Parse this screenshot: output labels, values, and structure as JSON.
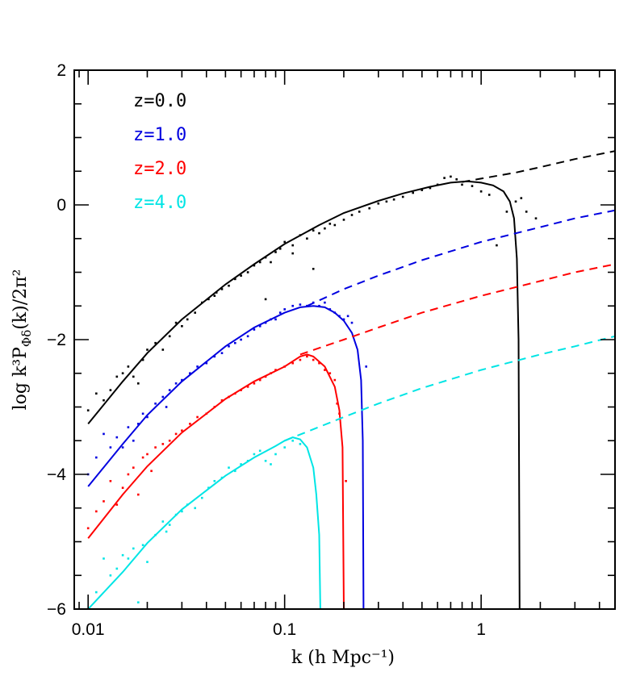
{
  "chart_data": {
    "type": "line",
    "xscale": "log",
    "xlabel": "k  (h  Mpc⁻¹)",
    "ylabel_main": "log  k³P",
    "ylabel_sub": "Φδ",
    "ylabel_rest": "(k)/2π²",
    "xlim": [
      0.0085,
      4.8
    ],
    "ylim": [
      -6,
      2
    ],
    "xticks": [
      {
        "value": 0.01,
        "label": "0.01"
      },
      {
        "value": 0.1,
        "label": "0.1"
      },
      {
        "value": 1,
        "label": "1"
      }
    ],
    "yticks": [
      {
        "value": 2,
        "label": "2"
      },
      {
        "value": 0,
        "label": "0"
      },
      {
        "value": -2,
        "label": "−2"
      },
      {
        "value": -4,
        "label": "−4"
      },
      {
        "value": -6,
        "label": "−6"
      }
    ],
    "legend_placement": "top-left",
    "series": [
      {
        "name": "z=0.0",
        "color": "#000000",
        "solid": [
          [
            0.01,
            -3.25
          ],
          [
            0.015,
            -2.62
          ],
          [
            0.02,
            -2.2
          ],
          [
            0.03,
            -1.7
          ],
          [
            0.05,
            -1.18
          ],
          [
            0.07,
            -0.88
          ],
          [
            0.1,
            -0.58
          ],
          [
            0.15,
            -0.3
          ],
          [
            0.2,
            -0.12
          ],
          [
            0.3,
            0.06
          ],
          [
            0.4,
            0.17
          ],
          [
            0.55,
            0.27
          ],
          [
            0.7,
            0.33
          ],
          [
            0.85,
            0.35
          ],
          [
            1.0,
            0.33
          ],
          [
            1.15,
            0.29
          ],
          [
            1.3,
            0.2
          ],
          [
            1.4,
            0.05
          ],
          [
            1.47,
            -0.2
          ],
          [
            1.52,
            -0.8
          ],
          [
            1.55,
            -2.0
          ],
          [
            1.57,
            -6.0
          ]
        ],
        "dashed": [
          [
            0.8,
            0.34
          ],
          [
            1.0,
            0.39
          ],
          [
            1.5,
            0.48
          ],
          [
            2.0,
            0.56
          ],
          [
            3.0,
            0.68
          ],
          [
            4.8,
            0.8
          ]
        ],
        "points": [
          [
            0.01,
            -3.05
          ],
          [
            0.011,
            -2.8
          ],
          [
            0.012,
            -2.9
          ],
          [
            0.013,
            -2.75
          ],
          [
            0.014,
            -2.55
          ],
          [
            0.015,
            -2.5
          ],
          [
            0.016,
            -2.4
          ],
          [
            0.017,
            -2.55
          ],
          [
            0.018,
            -2.65
          ],
          [
            0.019,
            -2.3
          ],
          [
            0.02,
            -2.15
          ],
          [
            0.022,
            -2.05
          ],
          [
            0.024,
            -2.15
          ],
          [
            0.026,
            -1.95
          ],
          [
            0.028,
            -1.75
          ],
          [
            0.03,
            -1.8
          ],
          [
            0.032,
            -1.7
          ],
          [
            0.035,
            -1.6
          ],
          [
            0.038,
            -1.45
          ],
          [
            0.041,
            -1.4
          ],
          [
            0.044,
            -1.35
          ],
          [
            0.048,
            -1.25
          ],
          [
            0.052,
            -1.2
          ],
          [
            0.056,
            -1.1
          ],
          [
            0.06,
            -1.05
          ],
          [
            0.065,
            -1.0
          ],
          [
            0.07,
            -0.9
          ],
          [
            0.075,
            -0.85
          ],
          [
            0.08,
            -0.78
          ],
          [
            0.085,
            -0.85
          ],
          [
            0.09,
            -0.7
          ],
          [
            0.095,
            -0.65
          ],
          [
            0.1,
            -0.55
          ],
          [
            0.11,
            -0.6
          ],
          [
            0.12,
            -0.45
          ],
          [
            0.13,
            -0.5
          ],
          [
            0.14,
            -0.38
          ],
          [
            0.15,
            -0.42
          ],
          [
            0.16,
            -0.35
          ],
          [
            0.17,
            -0.28
          ],
          [
            0.18,
            -0.3
          ],
          [
            0.2,
            -0.22
          ],
          [
            0.22,
            -0.15
          ],
          [
            0.24,
            -0.1
          ],
          [
            0.27,
            -0.05
          ],
          [
            0.3,
            0.02
          ],
          [
            0.33,
            0.05
          ],
          [
            0.36,
            0.08
          ],
          [
            0.4,
            0.12
          ],
          [
            0.45,
            0.18
          ],
          [
            0.5,
            0.22
          ],
          [
            0.55,
            0.25
          ],
          [
            0.6,
            0.3
          ],
          [
            0.65,
            0.4
          ],
          [
            0.7,
            0.42
          ],
          [
            0.75,
            0.38
          ],
          [
            0.8,
            0.3
          ],
          [
            0.9,
            0.28
          ],
          [
            1.0,
            0.2
          ],
          [
            1.1,
            0.15
          ],
          [
            1.2,
            -0.6
          ],
          [
            1.35,
            -0.1
          ],
          [
            1.5,
            0.05
          ],
          [
            1.6,
            0.1
          ],
          [
            1.7,
            -0.1
          ],
          [
            1.9,
            -0.2
          ],
          [
            0.045,
            -1.3
          ],
          [
            0.08,
            -1.4
          ],
          [
            0.11,
            -0.72
          ],
          [
            0.14,
            -0.95
          ]
        ]
      },
      {
        "name": "z=1.0",
        "color": "#0000e0",
        "solid": [
          [
            0.01,
            -4.18
          ],
          [
            0.015,
            -3.55
          ],
          [
            0.02,
            -3.12
          ],
          [
            0.03,
            -2.62
          ],
          [
            0.05,
            -2.1
          ],
          [
            0.07,
            -1.82
          ],
          [
            0.1,
            -1.6
          ],
          [
            0.12,
            -1.52
          ],
          [
            0.14,
            -1.5
          ],
          [
            0.16,
            -1.52
          ],
          [
            0.18,
            -1.6
          ],
          [
            0.2,
            -1.72
          ],
          [
            0.22,
            -1.9
          ],
          [
            0.235,
            -2.15
          ],
          [
            0.245,
            -2.6
          ],
          [
            0.25,
            -3.5
          ],
          [
            0.252,
            -6.0
          ]
        ],
        "dashed": [
          [
            0.13,
            -1.5
          ],
          [
            0.2,
            -1.25
          ],
          [
            0.3,
            -1.05
          ],
          [
            0.5,
            -0.82
          ],
          [
            1.0,
            -0.55
          ],
          [
            2.0,
            -0.33
          ],
          [
            3.0,
            -0.2
          ],
          [
            4.8,
            -0.08
          ]
        ],
        "points": [
          [
            0.01,
            -4.0
          ],
          [
            0.011,
            -3.75
          ],
          [
            0.012,
            -3.4
          ],
          [
            0.013,
            -3.6
          ],
          [
            0.014,
            -3.45
          ],
          [
            0.015,
            -3.6
          ],
          [
            0.016,
            -3.3
          ],
          [
            0.017,
            -3.5
          ],
          [
            0.018,
            -3.25
          ],
          [
            0.019,
            -3.1
          ],
          [
            0.02,
            -3.15
          ],
          [
            0.022,
            -2.95
          ],
          [
            0.024,
            -2.85
          ],
          [
            0.026,
            -2.75
          ],
          [
            0.028,
            -2.65
          ],
          [
            0.03,
            -2.6
          ],
          [
            0.033,
            -2.5
          ],
          [
            0.036,
            -2.4
          ],
          [
            0.04,
            -2.35
          ],
          [
            0.044,
            -2.25
          ],
          [
            0.048,
            -2.2
          ],
          [
            0.052,
            -2.1
          ],
          [
            0.056,
            -2.05
          ],
          [
            0.06,
            -2.0
          ],
          [
            0.065,
            -1.95
          ],
          [
            0.07,
            -1.85
          ],
          [
            0.075,
            -1.8
          ],
          [
            0.08,
            -1.75
          ],
          [
            0.085,
            -1.7
          ],
          [
            0.09,
            -1.7
          ],
          [
            0.095,
            -1.6
          ],
          [
            0.1,
            -1.55
          ],
          [
            0.11,
            -1.5
          ],
          [
            0.12,
            -1.48
          ],
          [
            0.13,
            -1.5
          ],
          [
            0.14,
            -1.45
          ],
          [
            0.15,
            -1.5
          ],
          [
            0.16,
            -1.45
          ],
          [
            0.17,
            -1.55
          ],
          [
            0.18,
            -1.6
          ],
          [
            0.19,
            -1.65
          ],
          [
            0.2,
            -1.7
          ],
          [
            0.21,
            -1.65
          ],
          [
            0.22,
            -1.75
          ],
          [
            0.26,
            -2.4
          ],
          [
            0.025,
            -3.0
          ]
        ]
      },
      {
        "name": "z=2.0",
        "color": "#ff0000",
        "solid": [
          [
            0.01,
            -4.95
          ],
          [
            0.015,
            -4.3
          ],
          [
            0.02,
            -3.88
          ],
          [
            0.03,
            -3.38
          ],
          [
            0.05,
            -2.88
          ],
          [
            0.07,
            -2.62
          ],
          [
            0.1,
            -2.4
          ],
          [
            0.12,
            -2.25
          ],
          [
            0.13,
            -2.22
          ],
          [
            0.14,
            -2.25
          ],
          [
            0.16,
            -2.4
          ],
          [
            0.18,
            -2.7
          ],
          [
            0.19,
            -3.05
          ],
          [
            0.197,
            -3.6
          ],
          [
            0.2,
            -6.0
          ]
        ],
        "dashed": [
          [
            0.12,
            -2.22
          ],
          [
            0.2,
            -2.0
          ],
          [
            0.3,
            -1.82
          ],
          [
            0.5,
            -1.6
          ],
          [
            1.0,
            -1.35
          ],
          [
            2.0,
            -1.13
          ],
          [
            3.0,
            -1.0
          ],
          [
            4.8,
            -0.88
          ]
        ],
        "points": [
          [
            0.01,
            -4.8
          ],
          [
            0.011,
            -4.55
          ],
          [
            0.012,
            -4.4
          ],
          [
            0.013,
            -4.1
          ],
          [
            0.014,
            -4.45
          ],
          [
            0.015,
            -4.2
          ],
          [
            0.016,
            -4.0
          ],
          [
            0.017,
            -3.9
          ],
          [
            0.018,
            -4.3
          ],
          [
            0.019,
            -3.75
          ],
          [
            0.02,
            -3.7
          ],
          [
            0.022,
            -3.6
          ],
          [
            0.024,
            -3.55
          ],
          [
            0.026,
            -3.5
          ],
          [
            0.028,
            -3.4
          ],
          [
            0.03,
            -3.35
          ],
          [
            0.033,
            -3.25
          ],
          [
            0.036,
            -3.15
          ],
          [
            0.04,
            -3.1
          ],
          [
            0.044,
            -3.0
          ],
          [
            0.048,
            -2.9
          ],
          [
            0.052,
            -2.85
          ],
          [
            0.056,
            -2.8
          ],
          [
            0.06,
            -2.75
          ],
          [
            0.065,
            -2.7
          ],
          [
            0.07,
            -2.65
          ],
          [
            0.075,
            -2.6
          ],
          [
            0.08,
            -2.55
          ],
          [
            0.085,
            -2.5
          ],
          [
            0.09,
            -2.45
          ],
          [
            0.1,
            -2.4
          ],
          [
            0.11,
            -2.35
          ],
          [
            0.12,
            -2.3
          ],
          [
            0.13,
            -2.25
          ],
          [
            0.14,
            -2.3
          ],
          [
            0.15,
            -2.35
          ],
          [
            0.16,
            -2.45
          ],
          [
            0.17,
            -2.5
          ],
          [
            0.18,
            -2.6
          ],
          [
            0.185,
            -2.95
          ],
          [
            0.19,
            -3.1
          ],
          [
            0.205,
            -4.1
          ],
          [
            0.021,
            -3.95
          ]
        ]
      },
      {
        "name": "z=4.0",
        "color": "#00e5e5",
        "solid": [
          [
            0.01,
            -6.0
          ],
          [
            0.015,
            -5.45
          ],
          [
            0.02,
            -5.02
          ],
          [
            0.03,
            -4.52
          ],
          [
            0.05,
            -4.02
          ],
          [
            0.07,
            -3.75
          ],
          [
            0.09,
            -3.58
          ],
          [
            0.1,
            -3.5
          ],
          [
            0.11,
            -3.45
          ],
          [
            0.12,
            -3.48
          ],
          [
            0.13,
            -3.6
          ],
          [
            0.14,
            -3.9
          ],
          [
            0.145,
            -4.3
          ],
          [
            0.15,
            -4.9
          ],
          [
            0.152,
            -6.0
          ]
        ],
        "dashed": [
          [
            0.1,
            -3.5
          ],
          [
            0.2,
            -3.15
          ],
          [
            0.3,
            -2.95
          ],
          [
            0.5,
            -2.72
          ],
          [
            1.0,
            -2.45
          ],
          [
            2.0,
            -2.22
          ],
          [
            3.0,
            -2.1
          ],
          [
            4.8,
            -1.95
          ]
        ],
        "points": [
          [
            0.011,
            -5.75
          ],
          [
            0.012,
            -5.25
          ],
          [
            0.013,
            -5.5
          ],
          [
            0.014,
            -5.4
          ],
          [
            0.015,
            -5.2
          ],
          [
            0.016,
            -5.25
          ],
          [
            0.017,
            -5.1
          ],
          [
            0.018,
            -5.9
          ],
          [
            0.019,
            -5.05
          ],
          [
            0.02,
            -5.3
          ],
          [
            0.022,
            -4.9
          ],
          [
            0.024,
            -4.7
          ],
          [
            0.026,
            -4.75
          ],
          [
            0.028,
            -4.6
          ],
          [
            0.03,
            -4.55
          ],
          [
            0.032,
            -4.45
          ],
          [
            0.035,
            -4.5
          ],
          [
            0.038,
            -4.35
          ],
          [
            0.041,
            -4.2
          ],
          [
            0.044,
            -4.1
          ],
          [
            0.048,
            -4.05
          ],
          [
            0.052,
            -3.9
          ],
          [
            0.056,
            -3.95
          ],
          [
            0.06,
            -3.85
          ],
          [
            0.065,
            -3.8
          ],
          [
            0.07,
            -3.7
          ],
          [
            0.075,
            -3.65
          ],
          [
            0.08,
            -3.8
          ],
          [
            0.085,
            -3.85
          ],
          [
            0.09,
            -3.7
          ],
          [
            0.1,
            -3.6
          ],
          [
            0.11,
            -3.5
          ],
          [
            0.12,
            -3.55
          ],
          [
            0.025,
            -4.85
          ]
        ]
      }
    ]
  }
}
